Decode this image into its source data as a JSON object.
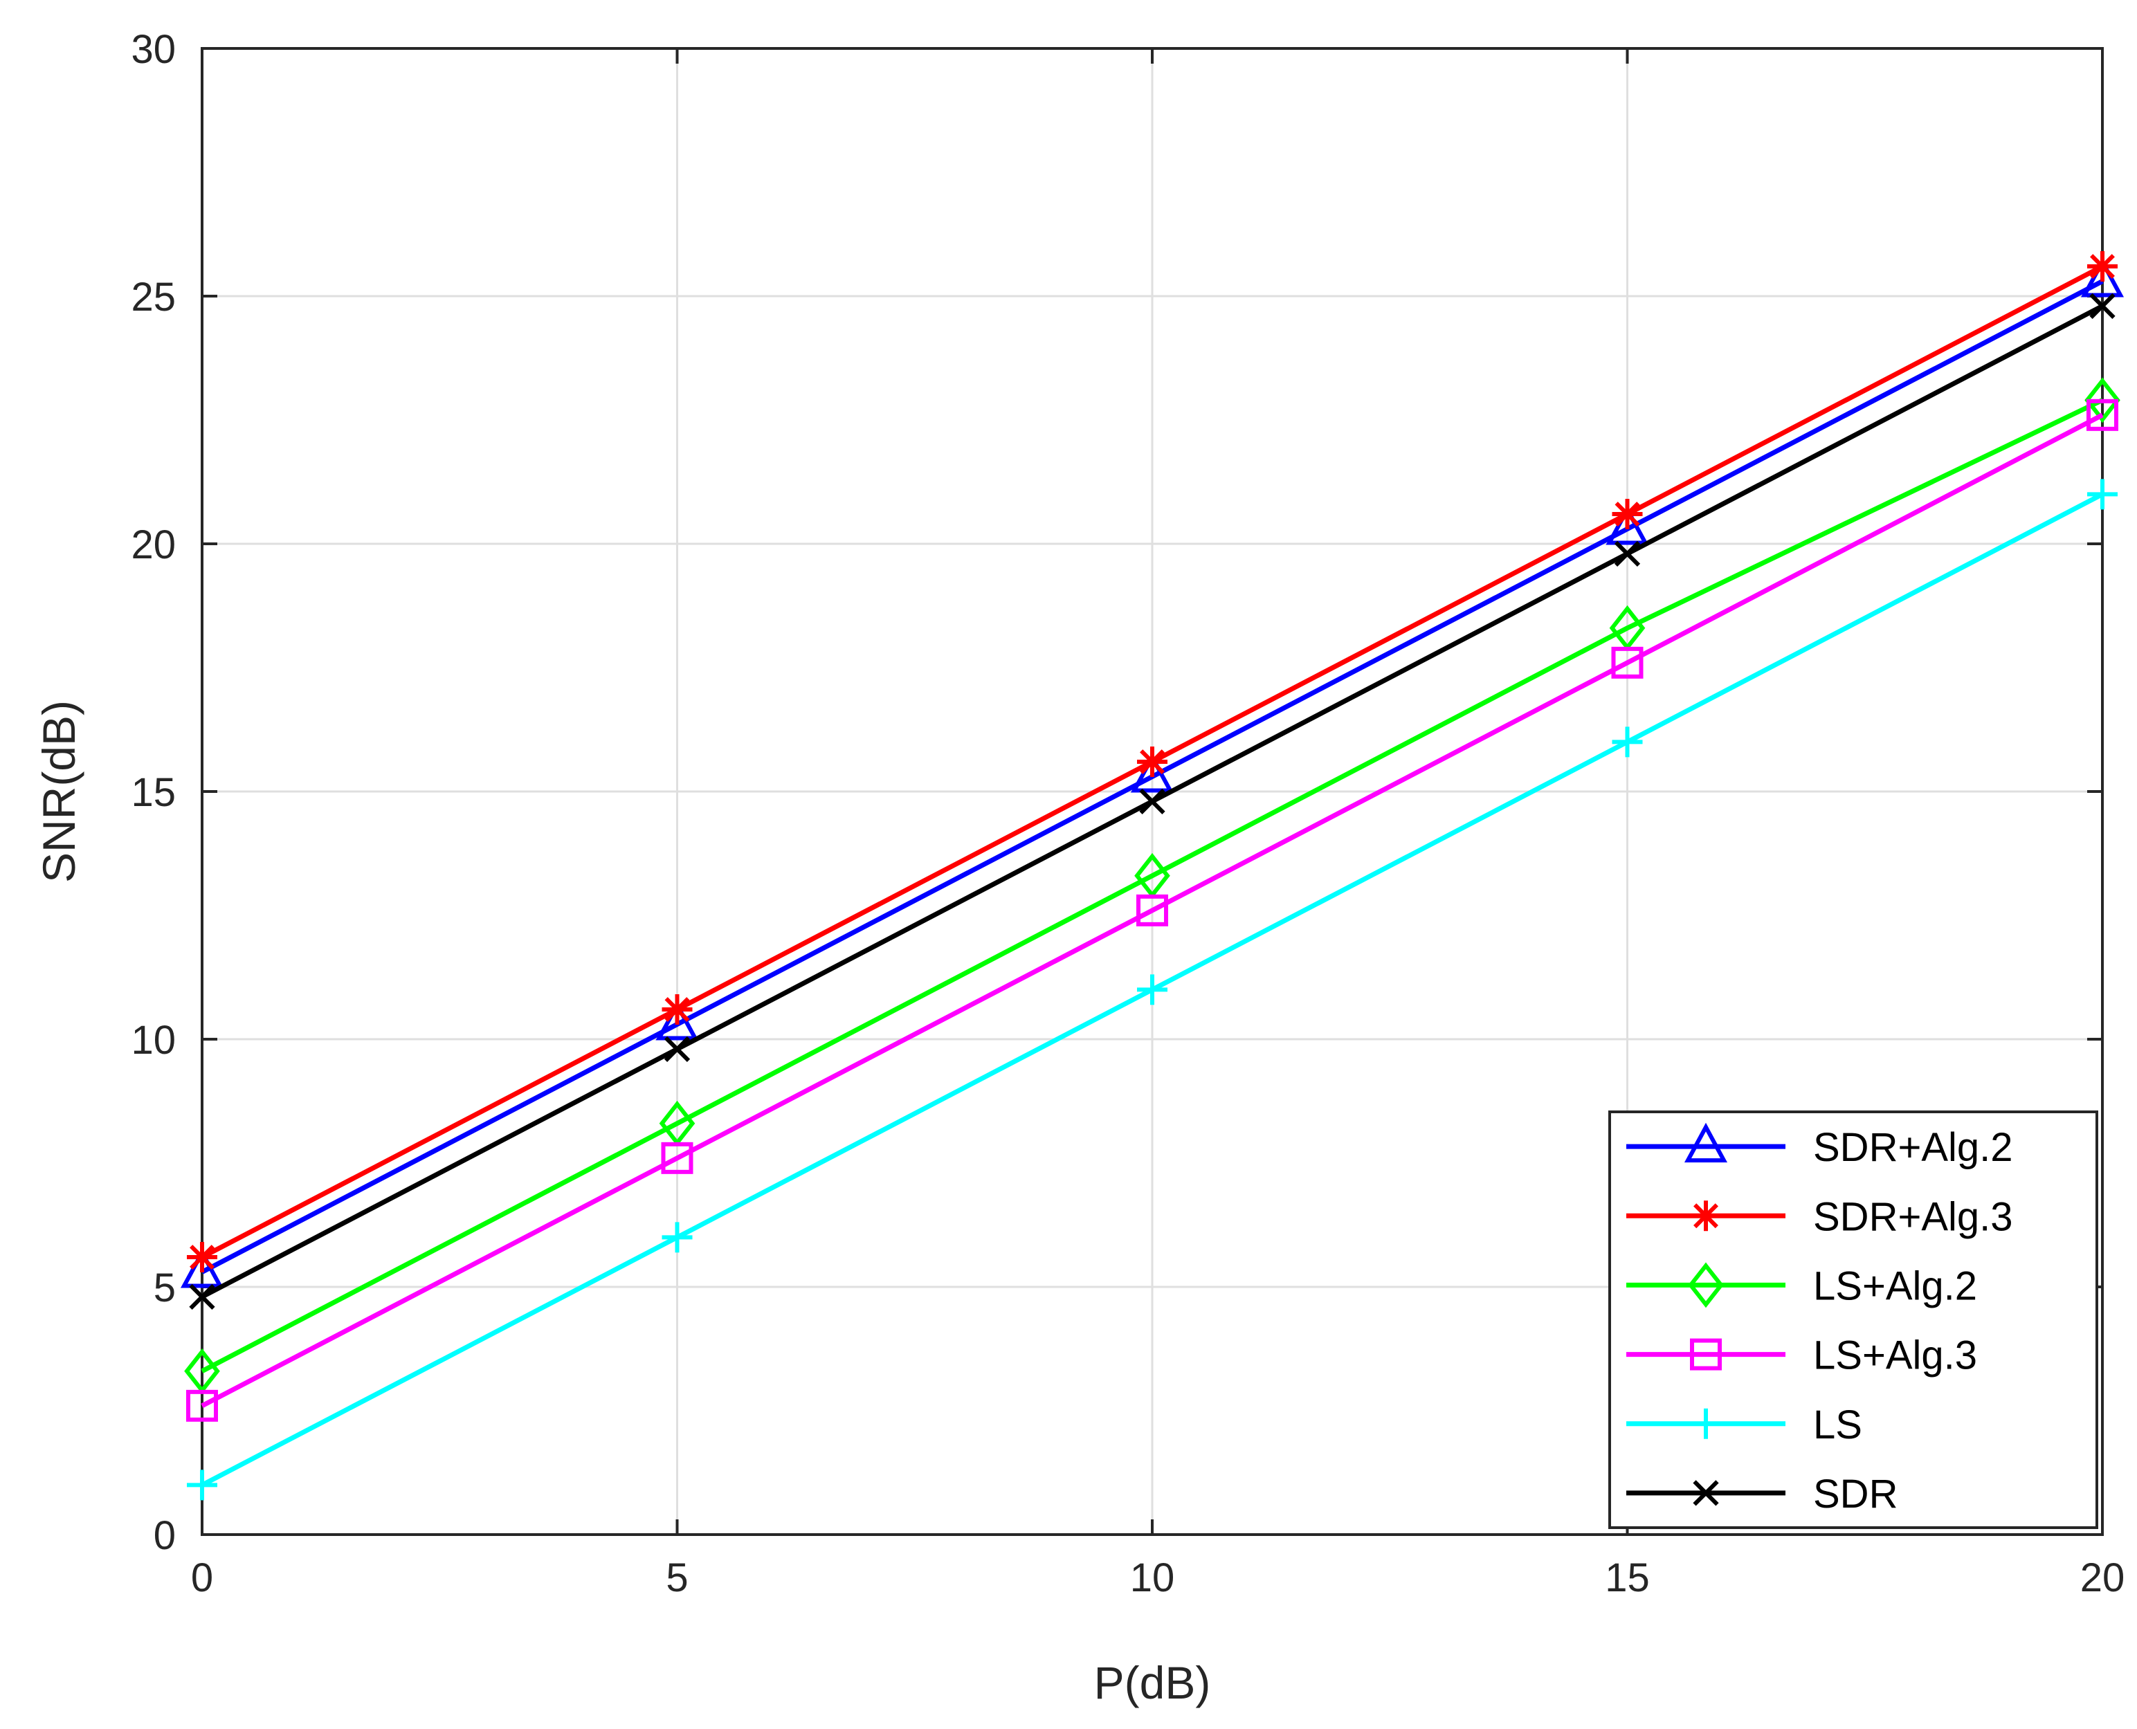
{
  "chart_data": {
    "type": "line",
    "xlabel": "P(dB)",
    "ylabel": "SNR(dB)",
    "xlim": [
      0,
      20
    ],
    "ylim": [
      0,
      30
    ],
    "xticks": [
      0,
      5,
      10,
      15,
      20
    ],
    "yticks": [
      0,
      5,
      10,
      15,
      20,
      25,
      30
    ],
    "x": [
      0,
      5,
      10,
      15,
      20
    ],
    "grid": true,
    "legend_position": "bottom-right",
    "series": [
      {
        "name": "SDR+Alg.2",
        "color": "#0000ff",
        "marker": "triangle",
        "values": [
          5.3,
          10.3,
          15.3,
          20.3,
          25.3
        ]
      },
      {
        "name": "SDR+Alg.3",
        "color": "#ff0000",
        "marker": "asterisk",
        "values": [
          5.6,
          10.6,
          15.6,
          20.6,
          25.6
        ]
      },
      {
        "name": "LS+Alg.2",
        "color": "#00ff00",
        "marker": "diamond",
        "values": [
          3.3,
          8.3,
          13.3,
          18.3,
          22.9
        ]
      },
      {
        "name": "LS+Alg.3",
        "color": "#ff00ff",
        "marker": "square",
        "values": [
          2.6,
          7.6,
          12.6,
          17.6,
          22.6
        ]
      },
      {
        "name": "LS",
        "color": "#00ffff",
        "marker": "plus",
        "values": [
          1.0,
          6.0,
          11.0,
          16.0,
          21.0
        ]
      },
      {
        "name": "SDR",
        "color": "#000000",
        "marker": "x",
        "values": [
          4.8,
          9.8,
          14.8,
          19.8,
          24.8
        ]
      }
    ]
  }
}
